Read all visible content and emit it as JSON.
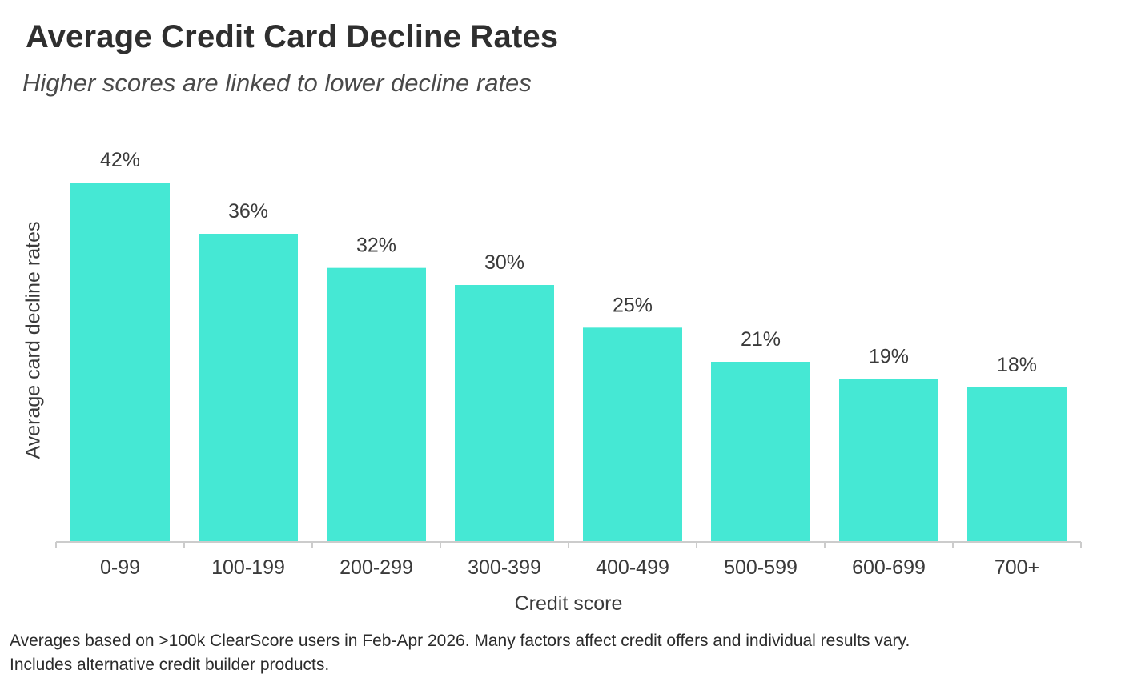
{
  "chart_data": {
    "type": "bar",
    "title": "Average Credit Card Decline Rates",
    "subtitle": "Higher scores are linked to lower decline rates",
    "xlabel": "Credit score",
    "ylabel": "Average card decline rates",
    "categories": [
      "0-99",
      "100-199",
      "200-299",
      "300-399",
      "400-499",
      "500-599",
      "600-699",
      "700+"
    ],
    "values": [
      42,
      36,
      32,
      30,
      25,
      21,
      19,
      18
    ],
    "data_labels": [
      "42%",
      "36%",
      "32%",
      "30%",
      "25%",
      "21%",
      "19%",
      "18%"
    ],
    "ylim": [
      0,
      42
    ],
    "grid": false,
    "legend": "none",
    "colors": {
      "bar": "#45e8d4",
      "axis": "#cccccc"
    }
  },
  "footnote": {
    "line1": "Averages based on >100k ClearScore users in Feb-Apr 2026. Many factors affect credit offers and individual results vary.",
    "line2": "Includes alternative credit builder products."
  }
}
